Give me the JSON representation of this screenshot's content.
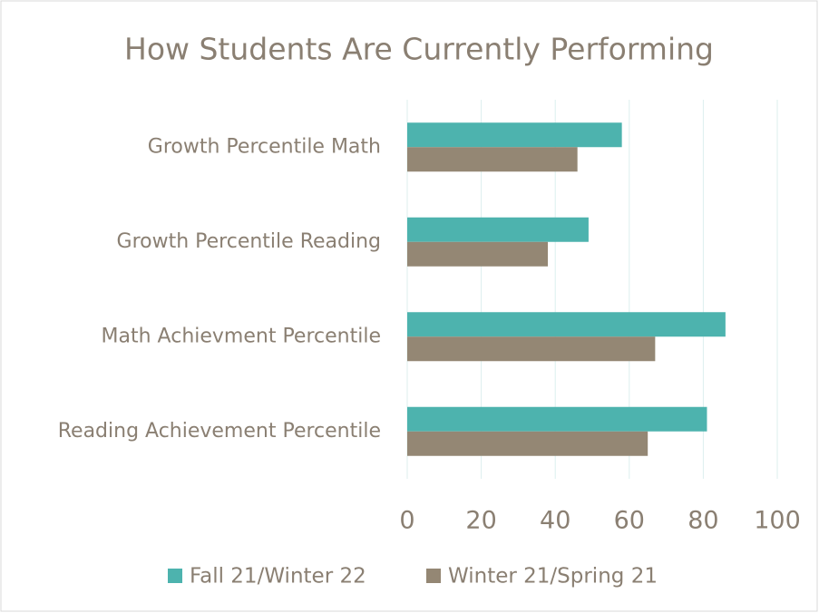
{
  "chart_data": {
    "type": "barh",
    "title": "How Students Are Currently Performing",
    "categories": [
      "Growth Percentile Math",
      "Growth Percentile Reading",
      "Math Achievment Percentile",
      "Reading Achievement Percentile"
    ],
    "series": [
      {
        "name": "Fall 21/Winter 22",
        "color": "#4db3ae",
        "values": [
          58,
          49,
          86,
          81
        ]
      },
      {
        "name": "Winter 21/Spring 21",
        "color": "#948774",
        "values": [
          46,
          38,
          67,
          65
        ]
      }
    ],
    "xlim": [
      0,
      100
    ],
    "xticks": [
      0,
      20,
      40,
      60,
      80,
      100
    ],
    "grid": true,
    "legend": "bottom"
  }
}
